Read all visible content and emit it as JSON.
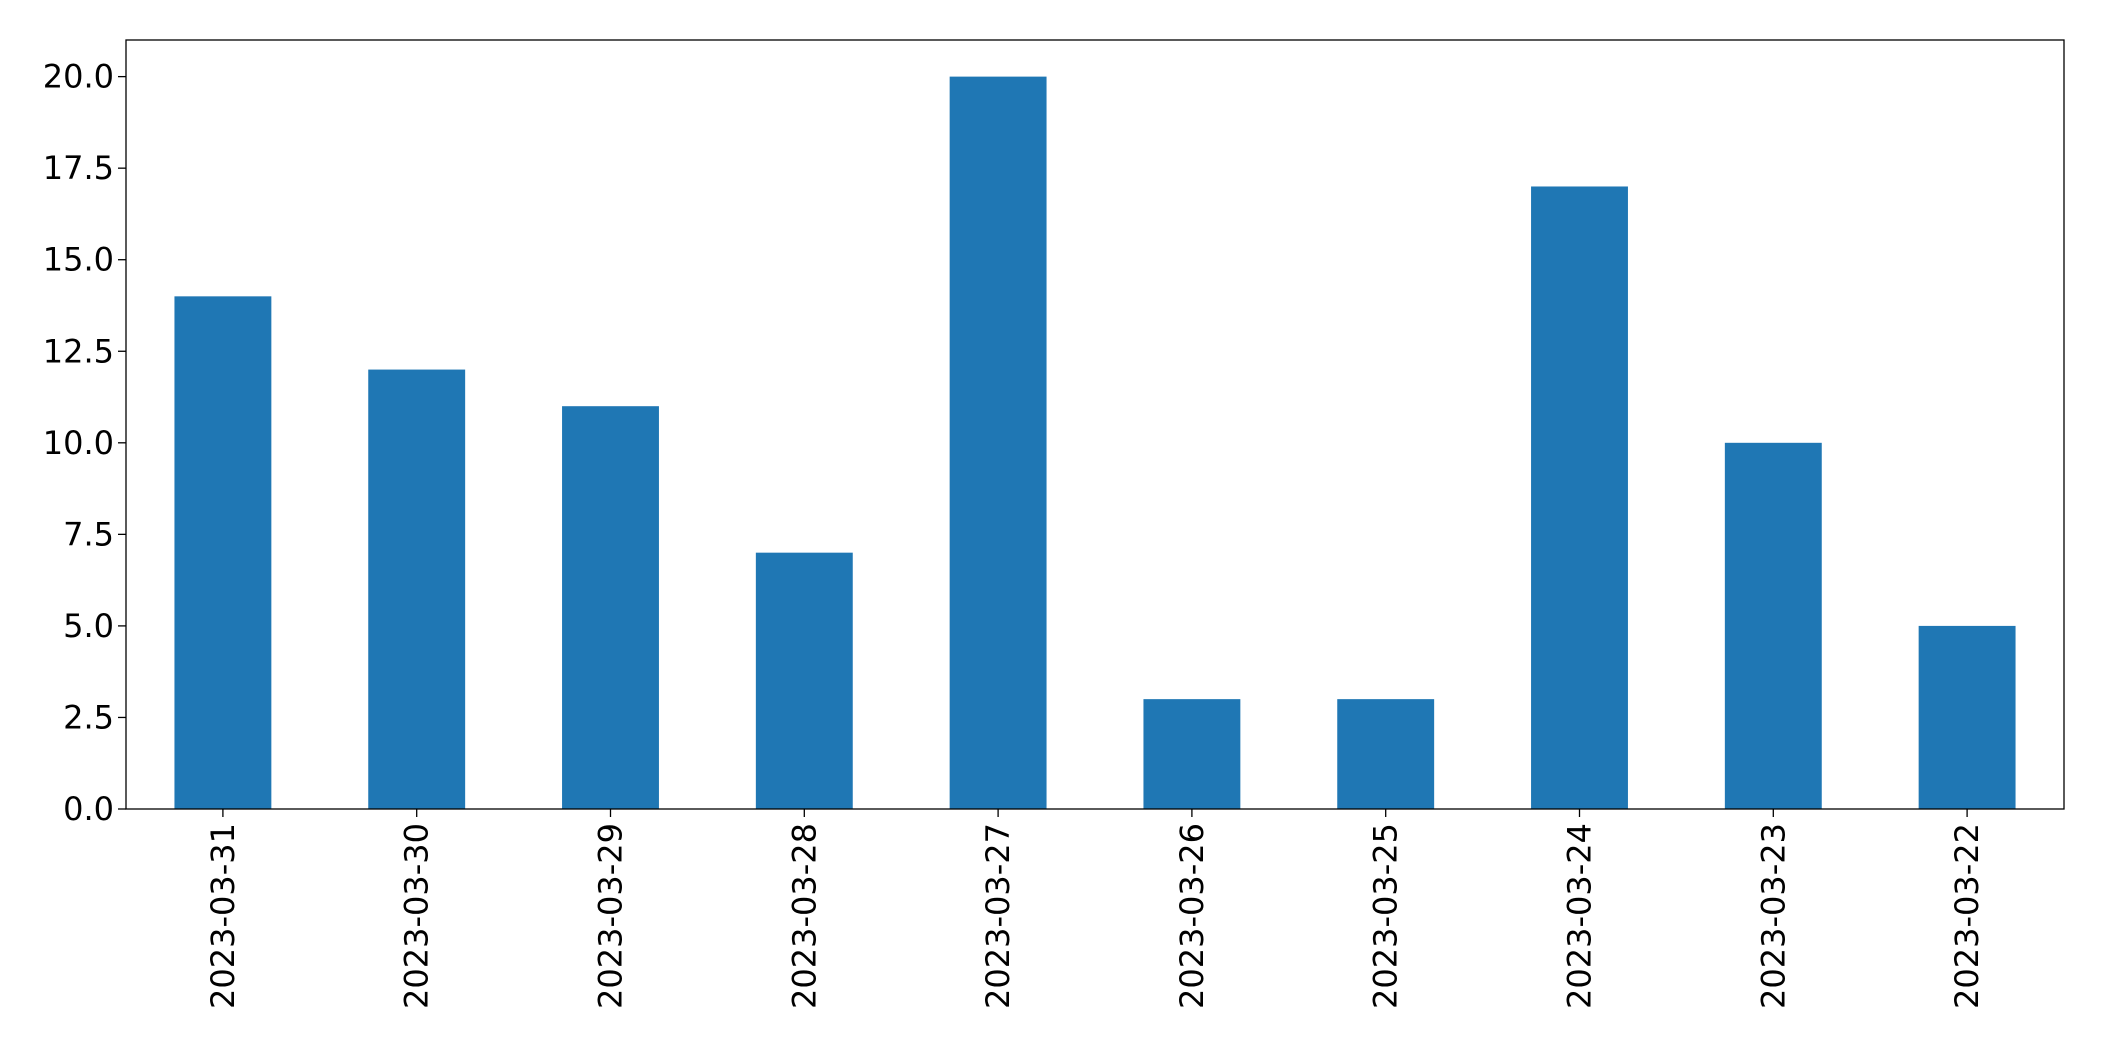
{
  "chart_data": {
    "type": "bar",
    "categories": [
      "2023-03-31",
      "2023-03-30",
      "2023-03-29",
      "2023-03-28",
      "2023-03-27",
      "2023-03-26",
      "2023-03-25",
      "2023-03-24",
      "2023-03-23",
      "2023-03-22"
    ],
    "values": [
      14,
      12,
      11,
      7,
      20,
      3,
      3,
      17,
      10,
      5
    ],
    "color": "#1f77b4",
    "ylim": [
      0,
      21
    ],
    "yticks": [
      {
        "value": 0,
        "label": "0.0"
      },
      {
        "value": 2.5,
        "label": "2.5"
      },
      {
        "value": 5,
        "label": "5.0"
      },
      {
        "value": 7.5,
        "label": "7.5"
      },
      {
        "value": 10,
        "label": "10.0"
      },
      {
        "value": 12.5,
        "label": "12.5"
      },
      {
        "value": 15,
        "label": "15.0"
      },
      {
        "value": 17.5,
        "label": "17.5"
      },
      {
        "value": 20,
        "label": "20.0"
      }
    ],
    "grid": false
  }
}
